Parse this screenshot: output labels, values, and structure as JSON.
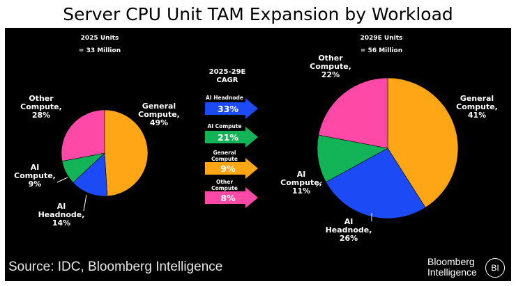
{
  "title": "Server CPU Unit TAM Expansion by Workload",
  "chart_data": [
    {
      "type": "pie",
      "title": "2025 Units",
      "subtitle": "= 33 Million",
      "slices": [
        {
          "name": "General Compute",
          "label_lines": [
            "General",
            "Compute,",
            "49%"
          ],
          "value": 49,
          "color": "#FFA616"
        },
        {
          "name": "AI Headnode",
          "label_lines": [
            "AI",
            "Headnode,",
            "14%"
          ],
          "value": 14,
          "color": "#1C4BF5"
        },
        {
          "name": "AI Compute",
          "label_lines": [
            "AI",
            "Compute,",
            "9%"
          ],
          "value": 9,
          "color": "#13B457"
        },
        {
          "name": "Other Compute",
          "label_lines": [
            "Other",
            "Compute,",
            "28%"
          ],
          "value": 28,
          "color": "#FF49A7"
        }
      ]
    },
    {
      "type": "pie",
      "title": "2029E Units",
      "subtitle": "= 56 Million",
      "slices": [
        {
          "name": "General Compute",
          "label_lines": [
            "General",
            "Compute,",
            "41%"
          ],
          "value": 41,
          "color": "#FFA616"
        },
        {
          "name": "AI Headnode",
          "label_lines": [
            "AI",
            "Headnode,",
            "26%"
          ],
          "value": 26,
          "color": "#1C4BF5"
        },
        {
          "name": "AI Compute",
          "label_lines": [
            "AI",
            "Compute,",
            "11%"
          ],
          "value": 11,
          "color": "#13B457"
        },
        {
          "name": "Other Compute",
          "label_lines": [
            "Other",
            "Compute,",
            "22%"
          ],
          "value": 22,
          "color": "#FF49A7"
        }
      ]
    },
    {
      "type": "bar",
      "title": "2025-29E CAGR",
      "title_lines": [
        "2025-29E",
        "CAGR"
      ],
      "categories": [
        "AI Headnode",
        "AI Compute",
        "General Compute",
        "Other Compute"
      ],
      "category_lines": [
        [
          "AI Headnode"
        ],
        [
          "AI Compute"
        ],
        [
          "General",
          "Compute"
        ],
        [
          "Other",
          "Compute"
        ]
      ],
      "values": [
        33,
        21,
        9,
        8
      ],
      "value_labels": [
        "33%",
        "21%",
        "9%",
        "8%"
      ],
      "colors": [
        "#1C4BF5",
        "#13B457",
        "#FFA616",
        "#FF49A7"
      ]
    }
  ],
  "source": "Source: IDC, Bloomberg Intelligence",
  "brand": {
    "line1": "Bloomberg",
    "line2": "Intelligence",
    "badge": "BI"
  }
}
